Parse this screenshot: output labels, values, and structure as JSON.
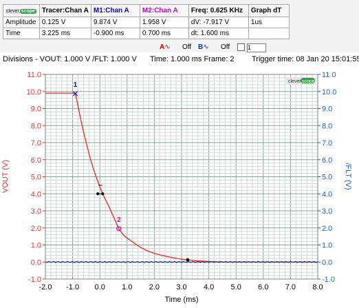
{
  "measurements": {
    "headers": [
      {
        "label": "Tracer:Chan A",
        "color": "#000000"
      },
      {
        "label": "M1:Chan A",
        "color": "#0000cc"
      },
      {
        "label": "M2:Chan A",
        "color": "#cc00cc"
      },
      {
        "label": "Freq: 0.625 KHz",
        "color": "#000000"
      },
      {
        "label": "Graph dT",
        "color": "#000000"
      }
    ],
    "logo": {
      "part1": "clever",
      "part2": "scope"
    },
    "rows": [
      {
        "label": "Amplitude",
        "cells": [
          "0.125 V",
          "9.874 V",
          "1.958 V",
          "dV: -7.917 V",
          "1us"
        ]
      },
      {
        "label": "Time",
        "cells": [
          "3.225 ms",
          "-0.900 ms",
          "0.700 ms",
          "dt:  1.600 ms",
          ""
        ]
      }
    ]
  },
  "controls": {
    "a_label": "A",
    "a_state": "Off",
    "b_label": "B",
    "b_state": "Off",
    "spin_value": "1"
  },
  "infobar": {
    "divisions": "Divisions -  VOUT: 1.000 V    /FLT: 1.000 V",
    "time": "Time: 1.000 ms  Frame: 2",
    "trigger": "Trigger time: 08 Jan 20 15:01:55"
  },
  "chart_data": {
    "type": "line",
    "xlabel": "Time (ms)",
    "ylabel_left": "VOUT (V)",
    "ylabel_right": "/FLT (V)",
    "xlim": [
      -2.0,
      8.0
    ],
    "ylim": [
      -1.0,
      11.0
    ],
    "x_ticks": [
      "-2.0",
      "-1.0",
      "0.0",
      "1.0",
      "2.0",
      "3.0",
      "4.0",
      "5.0",
      "6.0",
      "7.0",
      "8.0"
    ],
    "y_ticks": [
      "-1.0",
      "0.0",
      "1.0",
      "2.0",
      "3.0",
      "4.0",
      "5.0",
      "6.0",
      "7.0",
      "8.0",
      "9.0",
      "10.0",
      "11.0"
    ],
    "grid": true,
    "watermark": {
      "part1": "clever",
      "part2": "scope"
    },
    "series": [
      {
        "name": "VOUT",
        "color": "#e8322b",
        "x": [
          -2.0,
          -0.9,
          -0.7,
          -0.5,
          -0.3,
          -0.1,
          0.1,
          0.3,
          0.5,
          0.7,
          0.9,
          1.2,
          1.5,
          1.8,
          2.2,
          2.6,
          3.0,
          3.225,
          3.6,
          4.0,
          4.5,
          5.0,
          6.0,
          7.0,
          8.0
        ],
        "y": [
          9.9,
          9.9,
          8.35,
          6.98,
          5.79,
          4.84,
          4.02,
          3.36,
          2.66,
          1.96,
          1.54,
          1.18,
          0.86,
          0.62,
          0.42,
          0.28,
          0.17,
          0.125,
          0.07,
          0.03,
          0.0,
          0.0,
          0.0,
          0.0,
          0.0
        ]
      },
      {
        "name": "/FLT",
        "color": "#1f3c88",
        "x": [
          -2.0,
          8.0
        ],
        "y": [
          0.0,
          0.0
        ]
      }
    ],
    "markers": [
      {
        "label": "1",
        "x": -0.9,
        "y": 9.874,
        "color": "#0000cc"
      },
      {
        "label": "2",
        "x": 0.7,
        "y": 1.958,
        "color": "#cc00cc"
      }
    ],
    "tracer": {
      "x": 3.225,
      "y": 0.125
    }
  }
}
